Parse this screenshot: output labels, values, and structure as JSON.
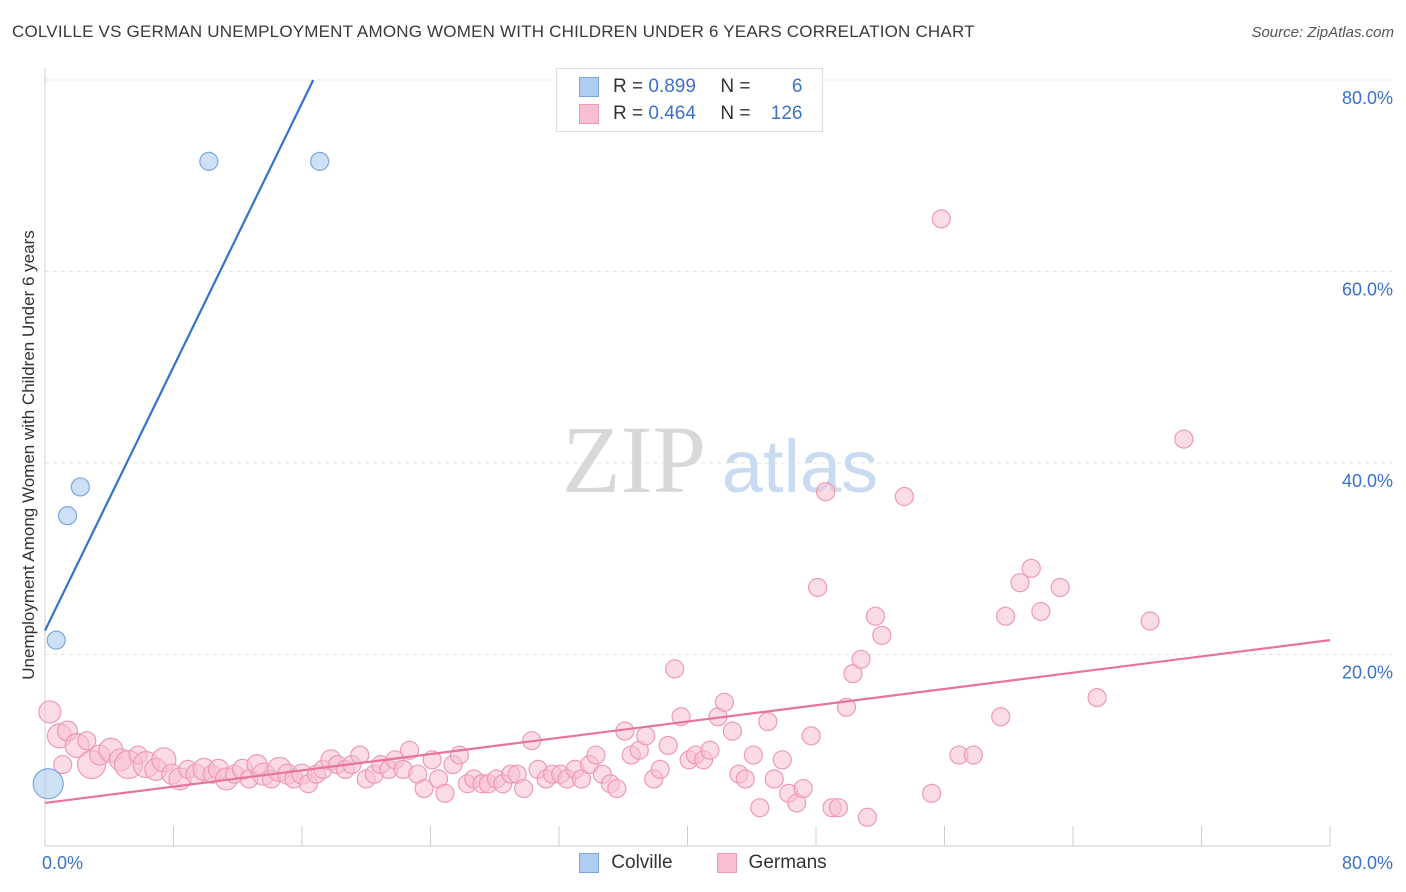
{
  "header": {
    "title": "COLVILLE VS GERMAN UNEMPLOYMENT AMONG WOMEN WITH CHILDREN UNDER 6 YEARS CORRELATION CHART",
    "source": "Source: ZipAtlas.com"
  },
  "watermark": {
    "zip": "ZIP",
    "atlas": "atlas"
  },
  "legend": {
    "r_label": "R =",
    "n_label": "N =",
    "colville": {
      "r": "0.899",
      "n": "6"
    },
    "germans": {
      "r": "0.464",
      "n": "126"
    }
  },
  "bottom_legend": [
    "Colville",
    "Germans"
  ],
  "colors": {
    "colville_fill": "#aecbf0",
    "colville_stroke": "#7aa6e0",
    "colville_line": "#3572c9",
    "germans_fill": "#f7bfd0",
    "germans_stroke": "#ee9ab5",
    "germans_line": "#e8749b",
    "tick_label": "#3b72c8"
  },
  "chart_data": {
    "type": "scatter",
    "ylabel": "Unemployment Among Women with Children Under 6 years",
    "xlim": [
      0,
      80
    ],
    "ylim": [
      0,
      80
    ],
    "x_tick_labels": [
      "0.0%",
      "80.0%"
    ],
    "y_tick_labels": [
      "20.0%",
      "40.0%",
      "60.0%",
      "80.0%"
    ],
    "y_ticks": [
      20,
      40,
      60,
      80
    ],
    "grid": true,
    "series": [
      {
        "name": "Colville",
        "r": 0.899,
        "n": 6,
        "trend": [
          [
            0,
            22.5
          ],
          [
            16.7,
            80
          ]
        ],
        "points": [
          [
            0.2,
            6.5,
            15
          ],
          [
            0.7,
            21.5,
            9
          ],
          [
            1.4,
            34.5,
            9
          ],
          [
            2.2,
            37.5,
            9
          ],
          [
            10.2,
            71.5,
            9
          ],
          [
            17.1,
            71.5,
            9
          ]
        ]
      },
      {
        "name": "Germans",
        "r": 0.464,
        "n": 126,
        "trend": [
          [
            0,
            4.5
          ],
          [
            80,
            21.5
          ]
        ],
        "points": [
          [
            0.3,
            14.0,
            11
          ],
          [
            0.9,
            11.5,
            12
          ],
          [
            1.4,
            12.0,
            10
          ],
          [
            2.0,
            10.5,
            12
          ],
          [
            2.6,
            11.0,
            9
          ],
          [
            2.9,
            8.5,
            14
          ],
          [
            3.4,
            9.5,
            10
          ],
          [
            4.1,
            10.0,
            12
          ],
          [
            4.7,
            9.0,
            11
          ],
          [
            5.2,
            8.5,
            14
          ],
          [
            5.8,
            9.5,
            9
          ],
          [
            6.3,
            8.5,
            13
          ],
          [
            6.9,
            8.0,
            11
          ],
          [
            7.4,
            9.0,
            12
          ],
          [
            7.9,
            7.5,
            10
          ],
          [
            8.4,
            7.0,
            11
          ],
          [
            8.9,
            8.0,
            9
          ],
          [
            9.4,
            7.5,
            10
          ],
          [
            9.9,
            8.0,
            11
          ],
          [
            10.4,
            7.5,
            9
          ],
          [
            10.8,
            8.0,
            10
          ],
          [
            11.3,
            7.0,
            11
          ],
          [
            11.8,
            7.5,
            9
          ],
          [
            12.3,
            8.0,
            10
          ],
          [
            12.7,
            7.0,
            9
          ],
          [
            13.2,
            8.5,
            10
          ],
          [
            13.6,
            7.5,
            11
          ],
          [
            14.1,
            7.0,
            9
          ],
          [
            14.6,
            8.0,
            12
          ],
          [
            15.1,
            7.5,
            10
          ],
          [
            15.5,
            7.0,
            9
          ],
          [
            16.0,
            7.5,
            10
          ],
          [
            16.4,
            6.5,
            9
          ],
          [
            16.9,
            7.5,
            9
          ],
          [
            17.3,
            8.0,
            9
          ],
          [
            17.8,
            9.0,
            10
          ],
          [
            18.2,
            8.5,
            9
          ],
          [
            18.7,
            8.0,
            9
          ],
          [
            19.1,
            8.5,
            9
          ],
          [
            19.6,
            9.5,
            9
          ],
          [
            20.0,
            7.0,
            9
          ],
          [
            20.5,
            7.5,
            9
          ],
          [
            20.9,
            8.5,
            9
          ],
          [
            21.4,
            8.0,
            9
          ],
          [
            21.8,
            9.0,
            9
          ],
          [
            22.3,
            8.0,
            9
          ],
          [
            22.7,
            10.0,
            9
          ],
          [
            23.2,
            7.5,
            9
          ],
          [
            23.6,
            6.0,
            9
          ],
          [
            24.1,
            9.0,
            9
          ],
          [
            24.5,
            7.0,
            9
          ],
          [
            24.9,
            5.5,
            9
          ],
          [
            25.4,
            8.5,
            9
          ],
          [
            25.8,
            9.5,
            9
          ],
          [
            26.3,
            6.5,
            9
          ],
          [
            26.7,
            7.0,
            9
          ],
          [
            27.2,
            6.5,
            9
          ],
          [
            27.6,
            6.5,
            9
          ],
          [
            28.1,
            7.0,
            9
          ],
          [
            28.5,
            6.5,
            9
          ],
          [
            29.0,
            7.5,
            9
          ],
          [
            29.4,
            7.5,
            9
          ],
          [
            29.8,
            6.0,
            9
          ],
          [
            30.3,
            11.0,
            9
          ],
          [
            30.7,
            8.0,
            9
          ],
          [
            31.2,
            7.0,
            9
          ],
          [
            31.6,
            7.5,
            9
          ],
          [
            32.1,
            7.5,
            9
          ],
          [
            32.5,
            7.0,
            9
          ],
          [
            33.0,
            8.0,
            9
          ],
          [
            33.4,
            7.0,
            9
          ],
          [
            33.9,
            8.5,
            9
          ],
          [
            34.3,
            9.5,
            9
          ],
          [
            34.7,
            7.5,
            9
          ],
          [
            35.2,
            6.5,
            9
          ],
          [
            35.6,
            6.0,
            9
          ],
          [
            36.1,
            12.0,
            9
          ],
          [
            36.5,
            9.5,
            9
          ],
          [
            37.0,
            10.0,
            9
          ],
          [
            37.4,
            11.5,
            9
          ],
          [
            37.9,
            7.0,
            9
          ],
          [
            38.3,
            8.0,
            9
          ],
          [
            38.8,
            10.5,
            9
          ],
          [
            39.2,
            18.5,
            9
          ],
          [
            39.6,
            13.5,
            9
          ],
          [
            40.1,
            9.0,
            9
          ],
          [
            40.5,
            9.5,
            9
          ],
          [
            41.0,
            9.0,
            9
          ],
          [
            41.4,
            10.0,
            9
          ],
          [
            41.9,
            13.5,
            9
          ],
          [
            42.3,
            15.0,
            9
          ],
          [
            42.8,
            12.0,
            9
          ],
          [
            43.2,
            7.5,
            9
          ],
          [
            43.6,
            7.0,
            9
          ],
          [
            44.1,
            9.5,
            9
          ],
          [
            44.5,
            4.0,
            9
          ],
          [
            45.0,
            13.0,
            9
          ],
          [
            45.4,
            7.0,
            9
          ],
          [
            45.9,
            9.0,
            9
          ],
          [
            46.3,
            5.5,
            9
          ],
          [
            46.8,
            4.5,
            9
          ],
          [
            47.2,
            6.0,
            9
          ],
          [
            47.7,
            11.5,
            9
          ],
          [
            48.1,
            27.0,
            9
          ],
          [
            48.6,
            37.0,
            9
          ],
          [
            49.0,
            4.0,
            9
          ],
          [
            49.4,
            4.0,
            9
          ],
          [
            49.9,
            14.5,
            9
          ],
          [
            50.3,
            18.0,
            9
          ],
          [
            50.8,
            19.5,
            9
          ],
          [
            51.2,
            3.0,
            9
          ],
          [
            51.7,
            24.0,
            9
          ],
          [
            52.1,
            22.0,
            9
          ],
          [
            53.5,
            36.5,
            9
          ],
          [
            55.8,
            65.5,
            9
          ],
          [
            55.2,
            5.5,
            9
          ],
          [
            56.9,
            9.5,
            9
          ],
          [
            57.8,
            9.5,
            9
          ],
          [
            59.5,
            13.5,
            9
          ],
          [
            59.8,
            24.0,
            9
          ],
          [
            60.7,
            27.5,
            9
          ],
          [
            61.4,
            29.0,
            9
          ],
          [
            62.0,
            24.5,
            9
          ],
          [
            63.2,
            27.0,
            9
          ],
          [
            65.5,
            15.5,
            9
          ],
          [
            68.8,
            23.5,
            9
          ],
          [
            70.9,
            42.5,
            9
          ],
          [
            1.1,
            8.5,
            9
          ]
        ]
      }
    ]
  }
}
